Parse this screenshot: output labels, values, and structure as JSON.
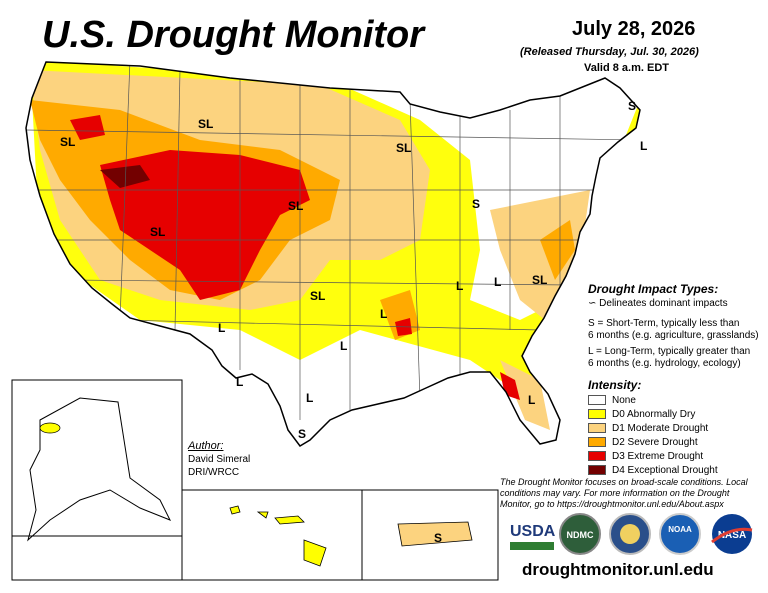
{
  "header": {
    "title": "U.S. Drought Monitor",
    "date": "July 28, 2026",
    "released": "(Released Thursday, Jul. 30, 2026)",
    "valid": "Valid 8 a.m. EDT"
  },
  "impact_types": {
    "title": "Drought Impact Types:",
    "delineates": "Delineates dominant impacts",
    "short_term_line1": "S = Short-Term, typically less than",
    "short_term_line2": "6 months (e.g. agriculture, grasslands)",
    "long_term_line1": "L = Long-Term, typically greater than",
    "long_term_line2": "6 months (e.g. hydrology, ecology)"
  },
  "intensity": {
    "title": "Intensity:",
    "levels": [
      {
        "label": "None",
        "color": "#ffffff"
      },
      {
        "label": "D0 Abnormally Dry",
        "color": "#ffff00"
      },
      {
        "label": "D1 Moderate Drought",
        "color": "#fcd37f"
      },
      {
        "label": "D2 Severe Drought",
        "color": "#ffaa00"
      },
      {
        "label": "D3 Extreme Drought",
        "color": "#e60000"
      },
      {
        "label": "D4 Exceptional Drought",
        "color": "#730000"
      }
    ]
  },
  "author": {
    "label": "Author:",
    "name": "David Simeral",
    "org": "DRI/WRCC"
  },
  "disclaimer": "The Drought Monitor focuses on broad-scale conditions. Local conditions may vary. For more information on the Drought Monitor, go to https://droughtmonitor.unl.edu/About.aspx",
  "website": "droughtmonitor.unl.edu",
  "map_labels": [
    "SL",
    "SL",
    "SL",
    "SL",
    "SL",
    "SL",
    "SL",
    "S",
    "S",
    "S",
    "S",
    "L",
    "L",
    "L",
    "L",
    "L",
    "L",
    "L",
    "L",
    "L",
    "S"
  ],
  "logos": {
    "usda": "USDA",
    "ndmc": "NDMC",
    "noaa": "NOAA",
    "nasa": "NASA"
  }
}
